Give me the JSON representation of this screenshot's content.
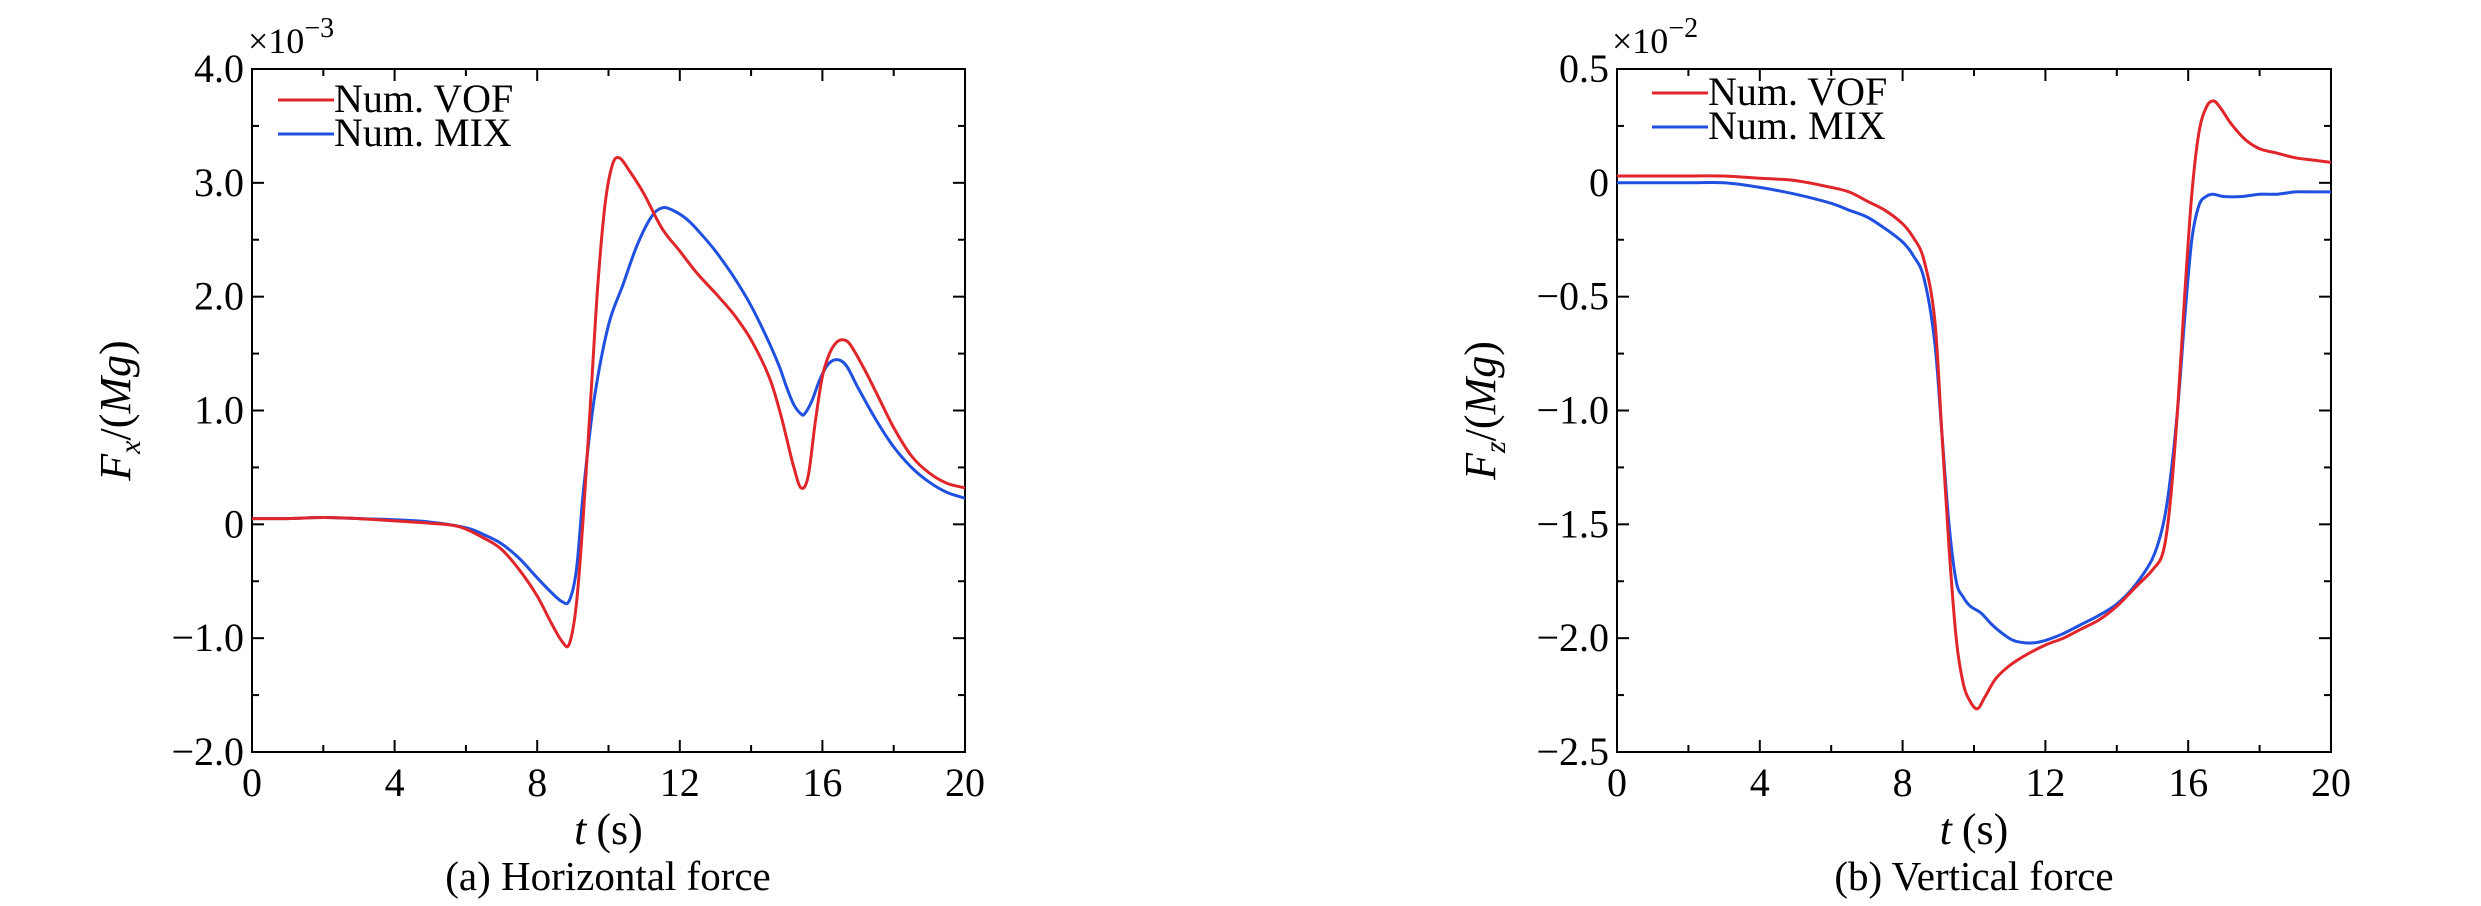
{
  "chart_data": [
    {
      "type": "line",
      "caption": "(a) Horizontal force",
      "xlabel_var": "t",
      "xlabel_unit": "(s)",
      "ylabel_var": "F",
      "ylabel_sub": "x",
      "ylabel_rest": "/(",
      "ylabel_mg": "Mg",
      "ylabel_close": ")",
      "y_multiplier": "×10",
      "y_exponent": "−3",
      "xlim": [
        0,
        20
      ],
      "ylim": [
        -2.0,
        4.0
      ],
      "x_ticks": [
        0,
        4,
        8,
        12,
        16,
        20
      ],
      "x_tick_labels": [
        "0",
        "4",
        "8",
        "12",
        "16",
        "20"
      ],
      "y_ticks": [
        -2.0,
        -1.0,
        0,
        1.0,
        2.0,
        3.0,
        4.0
      ],
      "y_tick_labels": [
        "−2.0",
        "−1.0",
        "0",
        "1.0",
        "2.0",
        "3.0",
        "4.0"
      ],
      "legend_position": "top-left",
      "series": [
        {
          "name": "Num. VOF",
          "color": "#e0262b",
          "x": [
            0,
            1,
            2,
            3,
            4,
            5,
            5.8,
            6.5,
            7,
            7.5,
            8,
            8.4,
            8.7,
            8.9,
            9.1,
            9.3,
            9.5,
            9.7,
            9.9,
            10.1,
            10.3,
            10.6,
            11,
            11.5,
            12,
            12.5,
            13,
            13.5,
            14,
            14.5,
            14.8,
            15,
            15.2,
            15.4,
            15.6,
            15.8,
            16,
            16.2,
            16.4,
            16.6,
            16.8,
            17.2,
            17.6,
            18,
            18.5,
            19,
            19.5,
            20
          ],
          "y": [
            0.05,
            0.05,
            0.06,
            0.05,
            0.03,
            0.01,
            -0.02,
            -0.12,
            -0.22,
            -0.4,
            -0.63,
            -0.87,
            -1.03,
            -1.05,
            -0.7,
            0.1,
            1.1,
            2.1,
            2.8,
            3.15,
            3.22,
            3.1,
            2.9,
            2.6,
            2.4,
            2.2,
            2.03,
            1.85,
            1.62,
            1.3,
            1.0,
            0.75,
            0.5,
            0.32,
            0.42,
            0.9,
            1.3,
            1.5,
            1.6,
            1.62,
            1.57,
            1.35,
            1.1,
            0.85,
            0.6,
            0.45,
            0.36,
            0.32
          ]
        },
        {
          "name": "Num. MIX",
          "color": "#2050e0",
          "x": [
            0,
            1,
            2,
            3,
            4,
            5,
            6,
            6.5,
            7,
            7.5,
            8,
            8.4,
            8.7,
            8.9,
            9.1,
            9.3,
            9.6,
            10,
            10.4,
            10.8,
            11.2,
            11.5,
            11.8,
            12.2,
            12.6,
            13,
            13.5,
            14,
            14.5,
            14.8,
            15,
            15.2,
            15.4,
            15.5,
            15.7,
            15.9,
            16.1,
            16.3,
            16.5,
            16.7,
            17,
            17.5,
            18,
            18.5,
            19,
            19.5,
            20
          ],
          "y": [
            0.05,
            0.05,
            0.06,
            0.05,
            0.04,
            0.02,
            -0.03,
            -0.09,
            -0.17,
            -0.3,
            -0.47,
            -0.6,
            -0.68,
            -0.67,
            -0.4,
            0.3,
            1.1,
            1.75,
            2.1,
            2.45,
            2.7,
            2.78,
            2.76,
            2.68,
            2.55,
            2.4,
            2.18,
            1.92,
            1.6,
            1.38,
            1.2,
            1.05,
            0.97,
            0.97,
            1.08,
            1.25,
            1.38,
            1.44,
            1.44,
            1.38,
            1.2,
            0.92,
            0.68,
            0.5,
            0.37,
            0.28,
            0.23
          ]
        }
      ]
    },
    {
      "type": "line",
      "caption": "(b) Vertical force",
      "xlabel_var": "t",
      "xlabel_unit": "(s)",
      "ylabel_var": "F",
      "ylabel_sub": "z",
      "ylabel_rest": "/(",
      "ylabel_mg": "Mg",
      "ylabel_close": ")",
      "y_multiplier": "×10",
      "y_exponent": "−2",
      "xlim": [
        0,
        20
      ],
      "ylim": [
        -2.5,
        0.5
      ],
      "x_ticks": [
        0,
        4,
        8,
        12,
        16,
        20
      ],
      "x_tick_labels": [
        "0",
        "4",
        "8",
        "12",
        "16",
        "20"
      ],
      "y_ticks": [
        -2.5,
        -2.0,
        -1.5,
        -1.0,
        -0.5,
        0,
        0.5
      ],
      "y_tick_labels": [
        "−2.5",
        "−2.0",
        "−1.5",
        "−1.0",
        "−0.5",
        "0",
        "0.5"
      ],
      "legend_position": "top-left",
      "series": [
        {
          "name": "Num. VOF",
          "color": "#e0262b",
          "x": [
            0,
            1,
            2,
            3,
            4,
            5,
            6,
            6.5,
            7,
            7.5,
            8,
            8.3,
            8.6,
            8.9,
            9.1,
            9.3,
            9.5,
            9.7,
            9.9,
            10.1,
            10.3,
            10.6,
            11,
            11.5,
            12,
            12.5,
            13,
            13.5,
            14,
            14.5,
            15,
            15.3,
            15.5,
            15.7,
            15.9,
            16.1,
            16.3,
            16.5,
            16.7,
            16.9,
            17.2,
            17.6,
            18,
            18.5,
            19,
            19.5,
            20
          ],
          "y": [
            0.03,
            0.03,
            0.03,
            0.03,
            0.02,
            0.01,
            -0.02,
            -0.04,
            -0.08,
            -0.12,
            -0.18,
            -0.24,
            -0.34,
            -0.6,
            -1.1,
            -1.6,
            -2.0,
            -2.2,
            -2.28,
            -2.31,
            -2.26,
            -2.18,
            -2.12,
            -2.07,
            -2.03,
            -2.0,
            -1.96,
            -1.92,
            -1.86,
            -1.78,
            -1.7,
            -1.62,
            -1.4,
            -1.0,
            -0.5,
            -0.05,
            0.22,
            0.33,
            0.36,
            0.33,
            0.26,
            0.19,
            0.15,
            0.13,
            0.11,
            0.1,
            0.09
          ]
        },
        {
          "name": "Num. MIX",
          "color": "#2050e0",
          "x": [
            0,
            1,
            2,
            3,
            4,
            5,
            6,
            6.5,
            7,
            7.5,
            8,
            8.3,
            8.6,
            8.9,
            9.1,
            9.3,
            9.5,
            9.7,
            9.9,
            10.2,
            10.5,
            10.8,
            11.1,
            11.4,
            11.7,
            12,
            12.5,
            13,
            13.5,
            14,
            14.5,
            15,
            15.3,
            15.5,
            15.7,
            15.9,
            16.1,
            16.3,
            16.5,
            16.7,
            17,
            17.5,
            18,
            18.5,
            19,
            19.5,
            20
          ],
          "y": [
            0.0,
            0.0,
            0.0,
            0.0,
            -0.02,
            -0.05,
            -0.09,
            -0.12,
            -0.15,
            -0.2,
            -0.26,
            -0.32,
            -0.42,
            -0.7,
            -1.1,
            -1.5,
            -1.75,
            -1.82,
            -1.86,
            -1.89,
            -1.94,
            -1.98,
            -2.01,
            -2.02,
            -2.02,
            -2.01,
            -1.98,
            -1.94,
            -1.9,
            -1.85,
            -1.77,
            -1.65,
            -1.5,
            -1.3,
            -1.0,
            -0.6,
            -0.25,
            -0.1,
            -0.06,
            -0.05,
            -0.06,
            -0.06,
            -0.05,
            -0.05,
            -0.04,
            -0.04,
            -0.04
          ]
        }
      ]
    }
  ]
}
